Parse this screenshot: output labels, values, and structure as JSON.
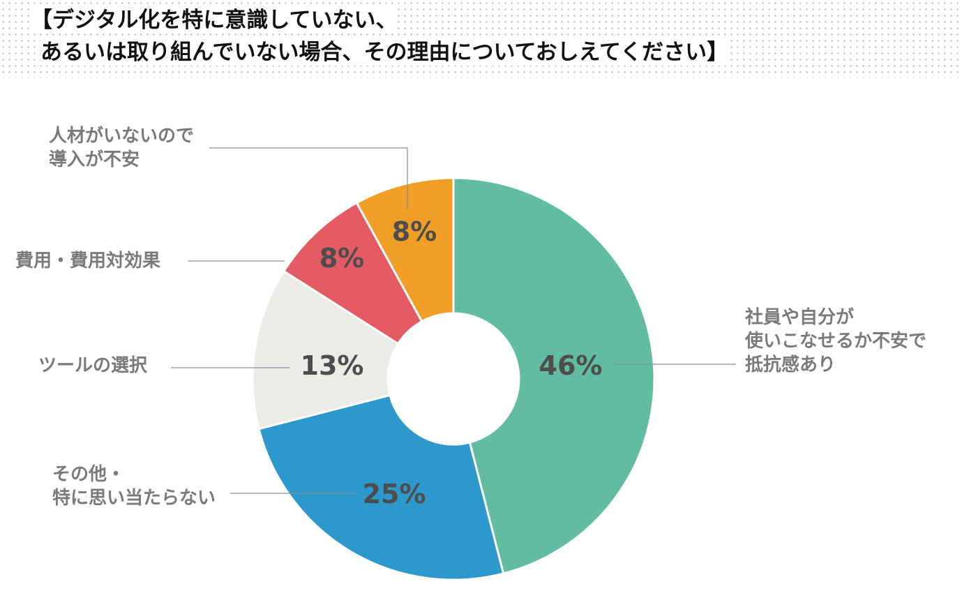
{
  "title": {
    "line1": "【デジタル化を特に意識していない、",
    "line2": "あるいは取り組んでいない場合、その理由についておしえてください】"
  },
  "chart_data": {
    "type": "pie",
    "donut": true,
    "slices": [
      {
        "label": [
          "社員や自分が",
          "使いこなせるか不安で",
          "抵抗感あり"
        ],
        "value": 46,
        "pct_label": "46%",
        "color": "#62bca2"
      },
      {
        "label": [
          "その他・",
          "特に思い当たらない"
        ],
        "value": 25,
        "pct_label": "25%",
        "color": "#2d98cb"
      },
      {
        "label": [
          "ツールの選択"
        ],
        "value": 13,
        "pct_label": "13%",
        "color": "#edebe7"
      },
      {
        "label": [
          "費用・費用対効果"
        ],
        "value": 8,
        "pct_label": "8%",
        "color": "#e45b63"
      },
      {
        "label": [
          "人材がいないので",
          "導入が不安"
        ],
        "value": 8,
        "pct_label": "8%",
        "color": "#f09e26"
      }
    ]
  }
}
